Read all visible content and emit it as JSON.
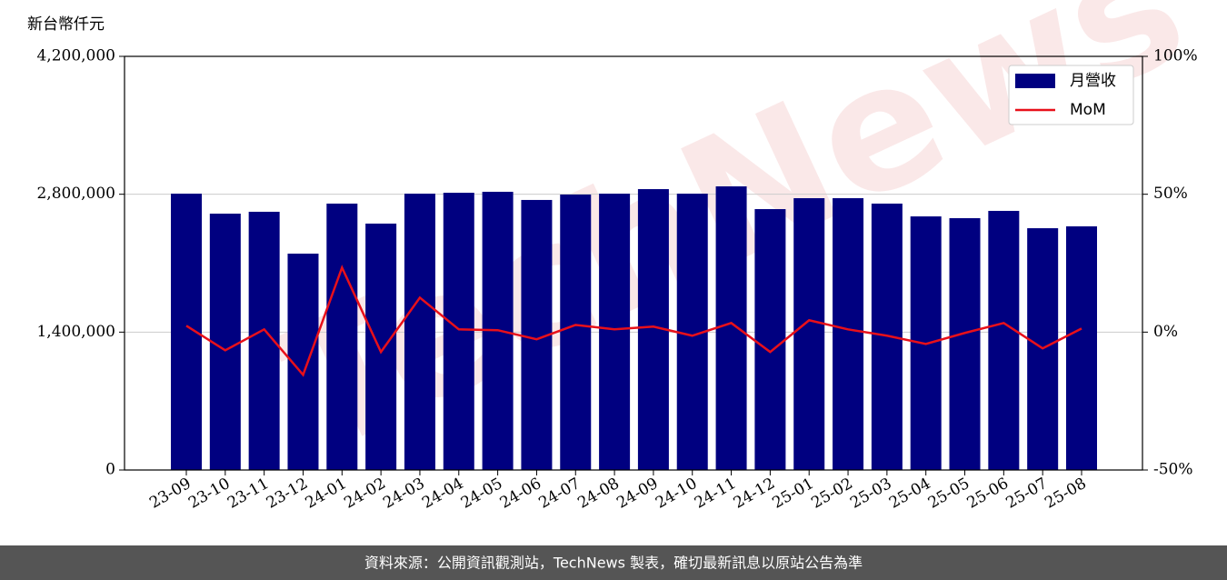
{
  "chart_data": {
    "type": "bar",
    "y_label": "新台幣仟元",
    "watermark": "TechNews",
    "footer": "資料來源：公開資訊觀測站，TechNews 製表，確切最新訊息以原站公告為準",
    "categories": [
      "23-09",
      "23-10",
      "23-11",
      "23-12",
      "24-01",
      "24-02",
      "24-03",
      "24-04",
      "24-05",
      "24-06",
      "24-07",
      "24-08",
      "24-09",
      "24-10",
      "24-11",
      "24-12",
      "25-01",
      "25-02",
      "25-03",
      "25-04",
      "25-05",
      "25-06",
      "25-07",
      "25-08"
    ],
    "series": [
      {
        "name": "月營收",
        "type": "bar",
        "color": "#000080",
        "values": [
          2806000,
          2603000,
          2622000,
          2197000,
          2705000,
          2502000,
          2806000,
          2815000,
          2825000,
          2742000,
          2797000,
          2806000,
          2852000,
          2806000,
          2880000,
          2649000,
          2760000,
          2760000,
          2705000,
          2575000,
          2557000,
          2631000,
          2455000,
          2474000
        ]
      },
      {
        "name": "MoM",
        "type": "line",
        "axis": "y2",
        "color": "#e8101a",
        "values": [
          2.3,
          -6.6,
          1,
          -15.5,
          23.4,
          -7.2,
          12.5,
          1,
          0.7,
          -2.6,
          2.6,
          1,
          2,
          -1.3,
          3.3,
          -7.2,
          4.3,
          1,
          -1.3,
          -4.3,
          -0.3,
          3.3,
          -5.9,
          1.3
        ]
      }
    ],
    "ylim": [
      0,
      4200000
    ],
    "yticks": [
      0,
      {
        "value": 1400000,
        "label": "1,400,000"
      },
      {
        "value": 2800000,
        "label": "2,800,000"
      },
      {
        "value": 4200000,
        "label": "4,200,000"
      }
    ],
    "y2lim": [
      -50,
      100
    ],
    "y2ticks": [
      {
        "value": -50,
        "label": "-50%"
      },
      {
        "value": 0,
        "label": "0%"
      },
      {
        "value": 50,
        "label": "50%"
      },
      {
        "value": 100,
        "label": "100%"
      }
    ],
    "grid": true,
    "legend": "upper right"
  }
}
